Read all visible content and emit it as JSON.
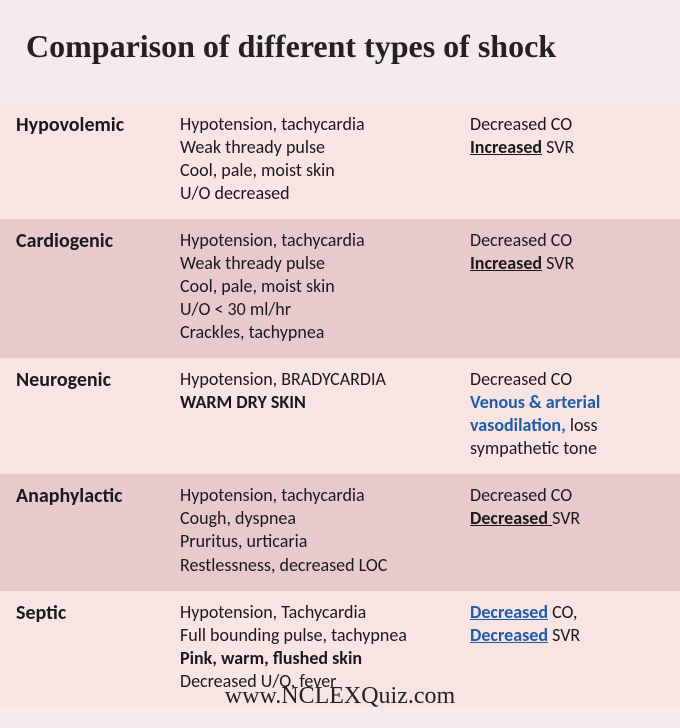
{
  "title": "Comparison of different types of shock",
  "footer": "www.NCLEXQuiz.com",
  "colors": {
    "page_bg": "#f5ebee",
    "row_light": "#f9e4e4",
    "row_dark": "#e8c9cc",
    "text": "#1a1a1a",
    "accent_blue": "#1f5ca8"
  },
  "rows": [
    {
      "name": "Hypovolemic",
      "signs": [
        {
          "t": "Hypotension, tachycardia"
        },
        {
          "t": "Weak thready pulse"
        },
        {
          "t": "Cool, pale, moist skin"
        },
        {
          "t": "U/O decreased"
        }
      ],
      "hemo": [
        {
          "t": "Decreased CO"
        },
        {
          "pre": "",
          "ub": "Increased",
          "post": " SVR"
        }
      ]
    },
    {
      "name": "Cardiogenic",
      "signs": [
        {
          "t": "Hypotension, tachycardia"
        },
        {
          "t": "Weak thready pulse"
        },
        {
          "t": "Cool, pale, moist skin"
        },
        {
          "t": "U/O < 30 ml/hr"
        },
        {
          "t": "Crackles, tachypnea"
        }
      ],
      "hemo": [
        {
          "t": "Decreased CO"
        },
        {
          "pre": "",
          "ub": "Increased",
          "post": " SVR"
        }
      ]
    },
    {
      "name": "Neurogenic",
      "signs": [
        {
          "t": "Hypotension, BRADYCARDIA"
        },
        {
          "b": "WARM DRY SKIN"
        }
      ],
      "hemo": [
        {
          "t": "Decreased CO"
        },
        {
          "blue": "Venous & arterial vasodilation, ",
          "post_plain": "loss sympathetic tone"
        }
      ]
    },
    {
      "name": "Anaphylactic",
      "signs": [
        {
          "t": "Hypotension, tachycardia"
        },
        {
          "t": "Cough, dyspnea"
        },
        {
          "t": "Pruritus, urticaria"
        },
        {
          "t": "Restlessness, decreased LOC"
        }
      ],
      "hemo": [
        {
          "t": "Decreased CO"
        },
        {
          "pre": "",
          "ub": "Decreased ",
          "post": "SVR"
        }
      ]
    },
    {
      "name": "Septic",
      "signs": [
        {
          "t": "Hypotension, Tachycardia"
        },
        {
          "t": "Full bounding pulse, tachypnea"
        },
        {
          "b": "Pink, warm, flushed skin"
        },
        {
          "t": "Decreased U/O, fever"
        }
      ],
      "hemo": [
        {
          "blue_u": "Decreased",
          "post_plain": " CO,"
        },
        {
          "blue_u": "Decreased",
          "post_plain": " SVR"
        }
      ]
    }
  ]
}
